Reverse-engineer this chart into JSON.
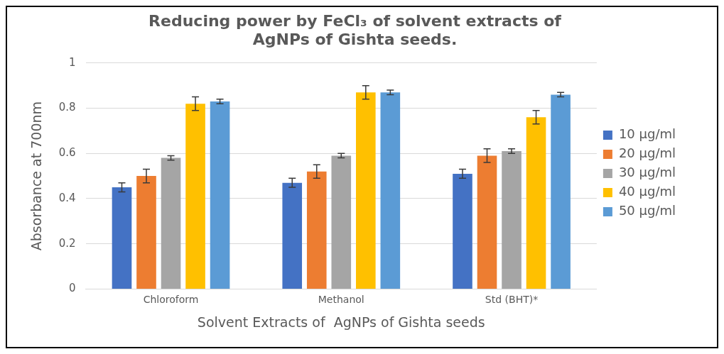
{
  "chart_data": {
    "type": "bar",
    "title": [
      "Reducing power by FeCl₃ of solvent extracts of",
      "AgNPs of Gishta seeds."
    ],
    "xlabel": "Solvent Extracts of  AgNPs of Gishta seeds",
    "ylabel": "Absorbance at 700nm",
    "categories": [
      "Chloroform",
      "Methanol",
      "Std (BHT)*"
    ],
    "series": [
      {
        "name": "10 µg/ml",
        "color": "#4472c4",
        "values": [
          0.45,
          0.47,
          0.51
        ],
        "errors": [
          0.02,
          0.02,
          0.02
        ]
      },
      {
        "name": "20 µg/ml",
        "color": "#ed7d31",
        "values": [
          0.5,
          0.52,
          0.59
        ],
        "errors": [
          0.03,
          0.03,
          0.03
        ]
      },
      {
        "name": "30 µg/ml",
        "color": "#a5a5a5",
        "values": [
          0.58,
          0.59,
          0.61
        ],
        "errors": [
          0.01,
          0.01,
          0.01
        ]
      },
      {
        "name": "40 µg/ml",
        "color": "#ffc000",
        "values": [
          0.82,
          0.87,
          0.76
        ],
        "errors": [
          0.03,
          0.03,
          0.03
        ]
      },
      {
        "name": "50 µg/ml",
        "color": "#5b9bd5",
        "values": [
          0.83,
          0.87,
          0.86
        ],
        "errors": [
          0.01,
          0.01,
          0.01
        ]
      }
    ],
    "ylim": [
      0,
      1
    ],
    "yticks": [
      0,
      0.2,
      0.4,
      0.6,
      0.8,
      1
    ],
    "grid": "y",
    "legend": "right"
  }
}
